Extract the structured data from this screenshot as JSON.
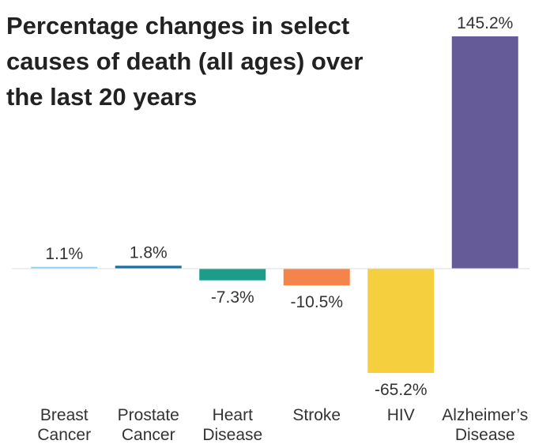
{
  "chart_data": {
    "type": "bar",
    "title": "Percentage changes in select causes of death (all ages) over the last 20 years",
    "categories": [
      [
        "Breast",
        "Cancer"
      ],
      [
        "Prostate",
        "Cancer"
      ],
      [
        "Heart",
        "Disease"
      ],
      [
        "Stroke"
      ],
      [
        "HIV"
      ],
      [
        "Alzheimer’s",
        "Disease"
      ]
    ],
    "values": [
      1.1,
      1.8,
      -7.3,
      -10.5,
      -65.2,
      145.2
    ],
    "value_labels": [
      "1.1%",
      "1.8%",
      "-7.3%",
      "-10.5%",
      "-65.2%",
      "145.2%"
    ],
    "colors": [
      "#8fd3f4",
      "#1a6fa0",
      "#1a9e8a",
      "#f5844c",
      "#f6cf3e",
      "#665b99"
    ]
  }
}
